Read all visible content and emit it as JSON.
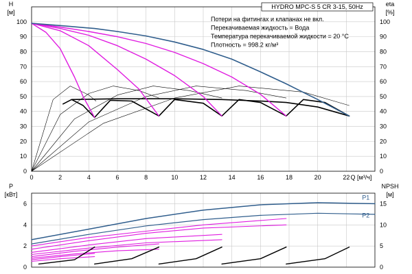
{
  "chart_data": [
    {
      "id": "head",
      "type": "line",
      "title": "HYDRO MPC-S 5 CR 3-15, 50Hz",
      "notes": [
        "Потери на фитингах и клапанах не вкл.",
        "Перекачиваемая жидкость = Вода",
        "Температура перекачиваемой жидкости = 20 °C",
        "Плотность = 998.2 кг/м³"
      ],
      "ylabel_left": [
        "H",
        "[м]"
      ],
      "ylabel_right": [
        "eta",
        "[%]"
      ],
      "xlabel": "Q [м³/ч]",
      "xlim": [
        0,
        24
      ],
      "ylim": [
        0,
        110
      ],
      "x_ticks": [
        "0",
        "2",
        "4",
        "6",
        "8",
        "10",
        "12",
        "14",
        "16",
        "18",
        "20",
        "22"
      ],
      "y_ticks": [
        "0",
        "10",
        "20",
        "30",
        "40",
        "50",
        "60",
        "70",
        "80",
        "90",
        "100"
      ],
      "grid": true,
      "colors": {
        "max_curve": "#2f5d8c",
        "speed_curves": "#e01be0",
        "duty_curves": "#000000",
        "eff_curves": "#000000"
      },
      "series": [
        {
          "group": "max",
          "x": [
            0,
            2,
            4.4,
            6,
            8,
            10,
            12,
            14,
            16,
            17.8,
            20,
            22.2
          ],
          "y": [
            99,
            97.5,
            95.5,
            93.5,
            90.5,
            86.5,
            81.5,
            75,
            66.5,
            58.5,
            48,
            37
          ]
        },
        {
          "group": "speed",
          "x": [
            0,
            1,
            2,
            3,
            3.6,
            4.4
          ],
          "y": [
            99,
            93,
            82,
            63,
            50,
            36
          ]
        },
        {
          "group": "speed",
          "x": [
            0,
            2,
            4,
            6,
            7.5,
            8.9
          ],
          "y": [
            99,
            94,
            84,
            68,
            55,
            37
          ]
        },
        {
          "group": "speed",
          "x": [
            0,
            2,
            4,
            6,
            8,
            10,
            12,
            13.3
          ],
          "y": [
            99,
            95.5,
            91,
            84,
            75,
            64,
            50,
            37
          ]
        },
        {
          "group": "speed",
          "x": [
            0,
            2,
            4,
            6,
            8,
            10,
            12,
            14,
            16,
            17.8
          ],
          "y": [
            99,
            96.5,
            93.5,
            90,
            85.5,
            79.5,
            72,
            63,
            51.5,
            37
          ]
        },
        {
          "group": "duty",
          "x": [
            2.2,
            2.8,
            3.6,
            4.4
          ],
          "y": [
            45,
            48,
            44,
            36
          ]
        },
        {
          "group": "duty",
          "x": [
            4.4,
            5.5,
            7,
            8.9
          ],
          "y": [
            36,
            47.5,
            47,
            37
          ]
        },
        {
          "group": "duty",
          "x": [
            8.9,
            10,
            12,
            13.3
          ],
          "y": [
            37,
            48,
            45.5,
            37
          ]
        },
        {
          "group": "duty",
          "x": [
            13.3,
            14.5,
            16,
            17.8
          ],
          "y": [
            37,
            48,
            46,
            37
          ]
        },
        {
          "group": "duty",
          "x": [
            17.8,
            19,
            20.5,
            22.2
          ],
          "y": [
            37,
            48,
            46,
            37
          ]
        },
        {
          "group": "duty",
          "x": [
            2.8,
            6,
            10,
            13.3,
            16,
            17.8,
            20,
            22.2
          ],
          "y": [
            48,
            48.5,
            48.5,
            48,
            47,
            46,
            43,
            37
          ]
        },
        {
          "group": "eff",
          "x": [
            0,
            1.5,
            2.7,
            4,
            4.5
          ],
          "y": [
            0,
            48,
            57,
            51,
            47
          ]
        },
        {
          "group": "eff",
          "x": [
            0,
            2,
            4,
            5.7,
            7.5,
            8.9
          ],
          "y": [
            0,
            38,
            52,
            57,
            54,
            49
          ]
        },
        {
          "group": "eff",
          "x": [
            0,
            3,
            6,
            8.5,
            11,
            13.3
          ],
          "y": [
            0,
            35,
            51,
            57,
            54,
            49
          ]
        },
        {
          "group": "eff",
          "x": [
            0,
            4,
            8,
            11.5,
            15,
            17.8
          ],
          "y": [
            0,
            33,
            50,
            57,
            54,
            49
          ]
        },
        {
          "group": "eff",
          "x": [
            0,
            5,
            10,
            14.5,
            19,
            22.2
          ],
          "y": [
            0,
            32,
            49,
            57,
            53,
            44
          ]
        }
      ]
    },
    {
      "id": "power",
      "type": "line",
      "ylabel_left": [
        "P",
        "[кВт]"
      ],
      "ylabel_right": [
        "NPSH",
        "[м]"
      ],
      "xlim": [
        0,
        24
      ],
      "ylim": [
        0,
        7
      ],
      "y_ticks": [
        "0",
        "2",
        "4",
        "6"
      ],
      "y_ticks_right": [
        "0",
        "5",
        "10",
        "15"
      ],
      "grid": true,
      "colors": {
        "p1": "#2f5d8c",
        "p2": "#2f5d8c",
        "speed_power": "#e01be0",
        "npsh": "#000000"
      },
      "labels": [
        {
          "text": "P1",
          "x": 23.1,
          "y": 6.4
        },
        {
          "text": "P2",
          "x": 23.1,
          "y": 4.7
        }
      ],
      "series": [
        {
          "group": "p1",
          "name": "P1",
          "x": [
            0,
            4,
            8,
            12,
            16,
            20,
            24
          ],
          "y": [
            2.6,
            3.6,
            4.6,
            5.4,
            5.9,
            6.1,
            6.0
          ]
        },
        {
          "group": "p2",
          "name": "P2",
          "x": [
            0,
            4,
            8,
            12,
            16,
            20,
            24
          ],
          "y": [
            2.2,
            3.1,
            3.9,
            4.5,
            4.9,
            5.1,
            5.0
          ]
        },
        {
          "group": "speed_power",
          "x": [
            0,
            4,
            8,
            12,
            17.8
          ],
          "y": [
            2.0,
            2.8,
            3.4,
            4.0,
            4.6
          ]
        },
        {
          "group": "speed_power",
          "x": [
            0,
            4,
            8,
            12,
            17.8
          ],
          "y": [
            1.7,
            2.5,
            3.2,
            3.7,
            4.0
          ]
        },
        {
          "group": "speed_power",
          "x": [
            0,
            4,
            8,
            13.3
          ],
          "y": [
            1.4,
            2.1,
            2.7,
            3.1
          ]
        },
        {
          "group": "speed_power",
          "x": [
            0,
            4,
            8,
            13.3
          ],
          "y": [
            1.2,
            1.8,
            2.3,
            2.6
          ]
        },
        {
          "group": "speed_power",
          "x": [
            0,
            3,
            6,
            8.9
          ],
          "y": [
            1.0,
            1.5,
            1.9,
            2.2
          ]
        },
        {
          "group": "speed_power",
          "x": [
            0,
            3,
            6,
            8.9
          ],
          "y": [
            0.85,
            1.25,
            1.55,
            1.7
          ]
        },
        {
          "group": "speed_power",
          "x": [
            0,
            2,
            4.4
          ],
          "y": [
            0.7,
            1.0,
            1.3
          ]
        },
        {
          "group": "speed_power",
          "x": [
            0,
            2,
            4.4
          ],
          "y": [
            0.55,
            0.8,
            1.0
          ]
        },
        {
          "group": "npsh",
          "x": [
            0.5,
            3,
            4.4
          ],
          "y": [
            0.3,
            0.7,
            1.9
          ]
        },
        {
          "group": "npsh",
          "x": [
            4.4,
            7,
            8.9
          ],
          "y": [
            0.3,
            0.8,
            1.9
          ]
        },
        {
          "group": "npsh",
          "x": [
            8.9,
            11.5,
            13.3
          ],
          "y": [
            0.3,
            0.8,
            1.9
          ]
        },
        {
          "group": "npsh",
          "x": [
            13.3,
            16,
            17.8
          ],
          "y": [
            0.3,
            0.8,
            1.9
          ]
        },
        {
          "group": "npsh",
          "x": [
            17.8,
            20.5,
            22.2
          ],
          "y": [
            0.3,
            0.8,
            1.9
          ]
        }
      ]
    }
  ]
}
